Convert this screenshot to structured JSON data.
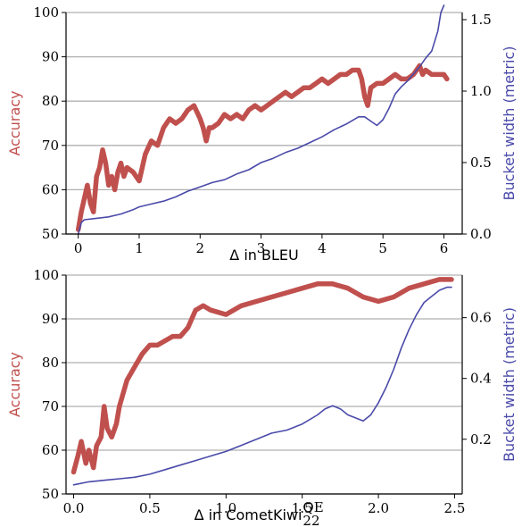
{
  "colors": {
    "accuracy": "#c0504d",
    "bucket": "#4a4aaa",
    "grid": "#b0b0b0"
  },
  "chart_data": [
    {
      "type": "line",
      "xlabel": "Δ in BLEU",
      "ylabel_left": "Accuracy",
      "ylabel_right": "Bucket width (metric)",
      "xlim": [
        -0.2,
        6.3
      ],
      "ylim_left": [
        50,
        100
      ],
      "ylim_right": [
        0,
        1.55
      ],
      "xticks": [
        "0",
        "1",
        "2",
        "3",
        "4",
        "5",
        "6"
      ],
      "yticks_left": [
        "50",
        "60",
        "70",
        "80",
        "90",
        "100"
      ],
      "yticks_right": [
        "0.0",
        "0.5",
        "1.0",
        "1.5"
      ],
      "grid": "horizontal",
      "series": [
        {
          "axis": "left",
          "x": [
            0.0,
            0.05,
            0.1,
            0.15,
            0.2,
            0.25,
            0.3,
            0.35,
            0.4,
            0.45,
            0.5,
            0.55,
            0.6,
            0.65,
            0.7,
            0.75,
            0.8,
            0.9,
            1.0,
            1.05,
            1.1,
            1.2,
            1.3,
            1.4,
            1.5,
            1.6,
            1.7,
            1.8,
            1.9,
            2.0,
            2.05,
            2.1,
            2.15,
            2.2,
            2.3,
            2.4,
            2.5,
            2.6,
            2.7,
            2.8,
            2.9,
            3.0,
            3.1,
            3.2,
            3.3,
            3.4,
            3.5,
            3.6,
            3.7,
            3.8,
            3.9,
            4.0,
            4.1,
            4.2,
            4.3,
            4.4,
            4.5,
            4.6,
            4.65,
            4.7,
            4.75,
            4.8,
            4.9,
            5.0,
            5.1,
            5.2,
            5.3,
            5.4,
            5.5,
            5.55,
            5.6,
            5.65,
            5.7,
            5.8,
            5.9,
            6.0,
            6.05
          ],
          "values": [
            51,
            55,
            58,
            61,
            57,
            55,
            63,
            65,
            69,
            66,
            61,
            63,
            60,
            64,
            66,
            63,
            65,
            64,
            62,
            65,
            68,
            71,
            70,
            74,
            76,
            75,
            76,
            78,
            79,
            76,
            74,
            71,
            74,
            74,
            75,
            77,
            76,
            77,
            76,
            78,
            79,
            78,
            79,
            80,
            81,
            82,
            81,
            82,
            83,
            83,
            84,
            85,
            84,
            85,
            86,
            86,
            87,
            87,
            85,
            81,
            79,
            83,
            84,
            84,
            85,
            86,
            85,
            85,
            86,
            87,
            88,
            86,
            87,
            86,
            86,
            86,
            85
          ]
        },
        {
          "axis": "right",
          "x": [
            0.0,
            0.05,
            0.1,
            0.3,
            0.5,
            0.7,
            0.9,
            1.0,
            1.2,
            1.4,
            1.6,
            1.8,
            2.0,
            2.2,
            2.4,
            2.6,
            2.8,
            3.0,
            3.2,
            3.4,
            3.6,
            3.8,
            4.0,
            4.2,
            4.4,
            4.6,
            4.7,
            4.8,
            4.9,
            5.0,
            5.1,
            5.2,
            5.3,
            5.4,
            5.5,
            5.6,
            5.7,
            5.8,
            5.9,
            5.95,
            6.0
          ],
          "values": [
            0.0,
            0.08,
            0.1,
            0.11,
            0.12,
            0.14,
            0.17,
            0.19,
            0.21,
            0.23,
            0.26,
            0.3,
            0.33,
            0.36,
            0.38,
            0.42,
            0.45,
            0.5,
            0.53,
            0.57,
            0.6,
            0.64,
            0.68,
            0.73,
            0.77,
            0.82,
            0.82,
            0.79,
            0.76,
            0.8,
            0.88,
            0.98,
            1.03,
            1.07,
            1.12,
            1.17,
            1.23,
            1.28,
            1.42,
            1.55,
            1.6
          ]
        }
      ]
    },
    {
      "type": "line",
      "xlabel": "Δ in CometKiwi",
      "xlabel_sup": "QE",
      "xlabel_sub": "22",
      "ylabel_left": "Accuracy",
      "ylabel_right": "Bucket width (metric)",
      "xlim": [
        -0.05,
        2.55
      ],
      "ylim_left": [
        50,
        100
      ],
      "ylim_right": [
        0.02,
        0.74
      ],
      "xticks": [
        "0.0",
        "0.5",
        "1.0",
        "1.5",
        "2.0",
        "2.5"
      ],
      "yticks_left": [
        "50",
        "60",
        "70",
        "80",
        "90",
        "100"
      ],
      "yticks_right": [
        "0.2",
        "0.4",
        "0.6"
      ],
      "grid": "horizontal",
      "series": [
        {
          "axis": "left",
          "x": [
            0.0,
            0.03,
            0.05,
            0.08,
            0.1,
            0.13,
            0.15,
            0.18,
            0.2,
            0.22,
            0.25,
            0.28,
            0.3,
            0.35,
            0.4,
            0.45,
            0.5,
            0.55,
            0.6,
            0.65,
            0.7,
            0.75,
            0.8,
            0.85,
            0.9,
            1.0,
            1.1,
            1.2,
            1.3,
            1.4,
            1.5,
            1.6,
            1.7,
            1.8,
            1.9,
            2.0,
            2.1,
            2.2,
            2.3,
            2.4,
            2.48
          ],
          "values": [
            55,
            59,
            62,
            57,
            60,
            56,
            61,
            63,
            70,
            65,
            63,
            66,
            70,
            76,
            79,
            82,
            84,
            84,
            85,
            86,
            86,
            88,
            92,
            93,
            92,
            91,
            93,
            94,
            95,
            96,
            97,
            98,
            98,
            97,
            95,
            94,
            95,
            97,
            98,
            99,
            99
          ]
        },
        {
          "axis": "right",
          "x": [
            0.0,
            0.1,
            0.2,
            0.3,
            0.4,
            0.5,
            0.6,
            0.7,
            0.8,
            0.9,
            1.0,
            1.1,
            1.2,
            1.3,
            1.4,
            1.5,
            1.6,
            1.65,
            1.7,
            1.75,
            1.8,
            1.85,
            1.9,
            1.95,
            2.0,
            2.05,
            2.1,
            2.15,
            2.2,
            2.25,
            2.3,
            2.35,
            2.4,
            2.45,
            2.48
          ],
          "values": [
            0.05,
            0.06,
            0.065,
            0.07,
            0.075,
            0.085,
            0.1,
            0.115,
            0.13,
            0.145,
            0.16,
            0.18,
            0.2,
            0.22,
            0.23,
            0.25,
            0.28,
            0.3,
            0.31,
            0.3,
            0.28,
            0.27,
            0.26,
            0.28,
            0.32,
            0.37,
            0.43,
            0.5,
            0.56,
            0.61,
            0.65,
            0.67,
            0.69,
            0.7,
            0.7
          ]
        }
      ]
    }
  ]
}
